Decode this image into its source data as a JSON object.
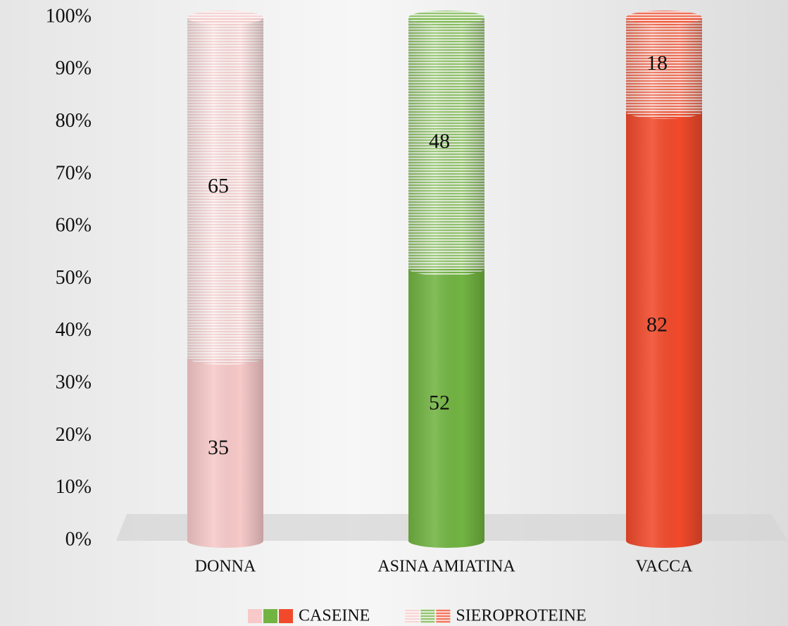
{
  "chart_data": {
    "type": "stacked-cylinder",
    "categories": [
      "DONNA",
      "ASINA AMIATINA",
      "VACCA"
    ],
    "series": [
      {
        "name": "CASEINE",
        "colors": [
          "#f7c9c9",
          "#72b442",
          "#f14a2b"
        ],
        "striped": false,
        "values": [
          35,
          52,
          82
        ]
      },
      {
        "name": "SIEROPROTEINE",
        "colors": [
          "#f7c9c9",
          "#72b442",
          "#f14a2b"
        ],
        "striped": true,
        "values": [
          65,
          48,
          18
        ]
      }
    ],
    "ylim": [
      0,
      100
    ],
    "yticks": [
      {
        "value": 0,
        "label": "0%"
      },
      {
        "value": 10,
        "label": "10%"
      },
      {
        "value": 20,
        "label": "20%"
      },
      {
        "value": 30,
        "label": "30%"
      },
      {
        "value": 40,
        "label": "40%"
      },
      {
        "value": 50,
        "label": "50%"
      },
      {
        "value": 60,
        "label": "60%"
      },
      {
        "value": 70,
        "label": "70%"
      },
      {
        "value": 80,
        "label": "80%"
      },
      {
        "value": 90,
        "label": "90%"
      },
      {
        "value": 100,
        "label": "100%"
      }
    ]
  }
}
